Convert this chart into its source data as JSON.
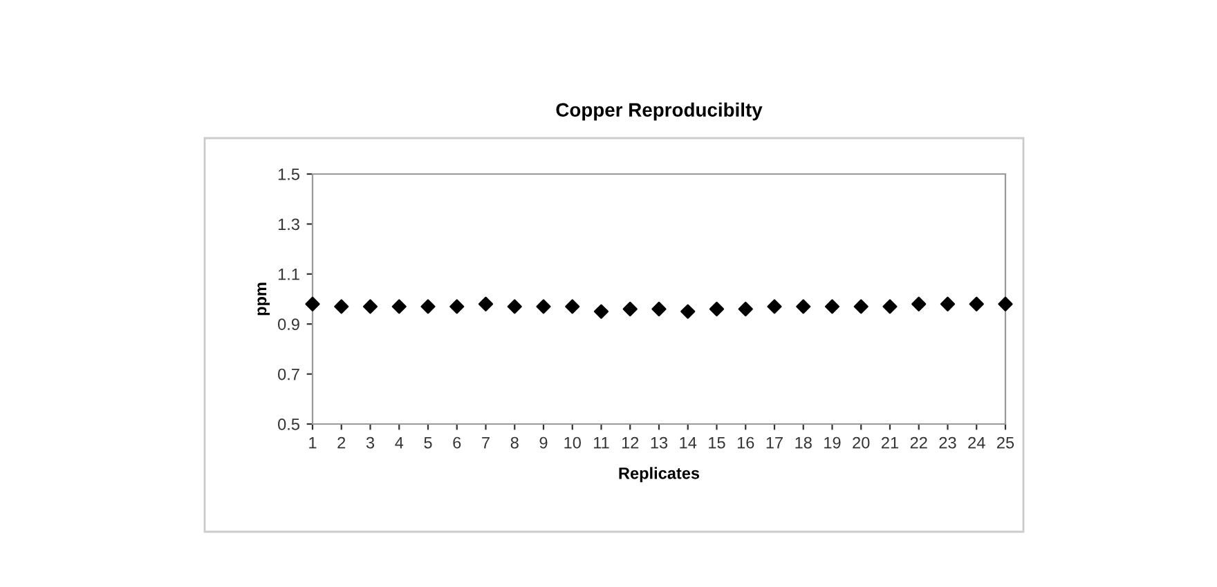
{
  "chart_data": {
    "type": "scatter",
    "title": "Copper Reproducibilty",
    "xlabel": "Replicates",
    "ylabel": "ppm",
    "x": [
      1,
      2,
      3,
      4,
      5,
      6,
      7,
      8,
      9,
      10,
      11,
      12,
      13,
      14,
      15,
      16,
      17,
      18,
      19,
      20,
      21,
      22,
      23,
      24,
      25
    ],
    "series": [
      {
        "color": "#000000",
        "values": [
          0.98,
          0.97,
          0.97,
          0.97,
          0.97,
          0.97,
          0.98,
          0.97,
          0.97,
          0.97,
          0.95,
          0.96,
          0.96,
          0.95,
          0.96,
          0.96,
          0.97,
          0.97,
          0.97,
          0.97,
          0.97,
          0.98,
          0.98,
          0.98,
          0.98
        ]
      }
    ],
    "xlim": [
      1,
      25
    ],
    "xticks": [
      1,
      2,
      3,
      4,
      5,
      6,
      7,
      8,
      9,
      10,
      11,
      12,
      13,
      14,
      15,
      16,
      17,
      18,
      19,
      20,
      21,
      22,
      23,
      24,
      25
    ],
    "ylim": [
      0.5,
      1.5
    ],
    "yticks": [
      0.5,
      0.7,
      0.9,
      1.1,
      1.3,
      1.5
    ],
    "marker": "diamond",
    "grid": false,
    "legend": false
  }
}
